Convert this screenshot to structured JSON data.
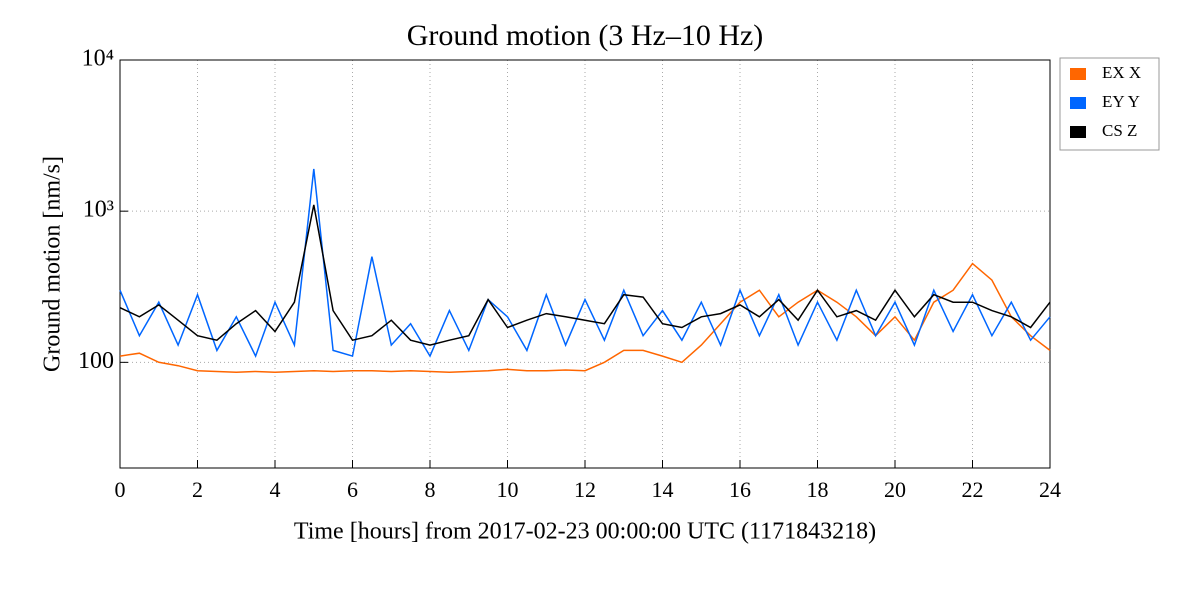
{
  "chart_data": {
    "type": "line",
    "title": "Ground motion (3 Hz–10 Hz)",
    "xlabel": "Time [hours] from 2017-02-23 00:00:00 UTC (1171843218)",
    "ylabel": "Ground motion [nm/s]",
    "log_y": true,
    "grid": true,
    "legend": "outside-right-top",
    "xlim": [
      0,
      24
    ],
    "xticks": [
      0,
      2,
      4,
      6,
      8,
      10,
      12,
      14,
      16,
      18,
      20,
      22,
      24
    ],
    "ylim": [
      20,
      10000
    ],
    "yticks": [
      100,
      {
        "value": 1000,
        "label": "10³"
      },
      {
        "value": 10000,
        "label": "10⁴"
      }
    ],
    "x": [
      0,
      0.5,
      1,
      1.5,
      2,
      2.5,
      3,
      3.5,
      4,
      4.5,
      5,
      5.5,
      6,
      6.5,
      7,
      7.5,
      8,
      8.5,
      9,
      9.5,
      10,
      10.5,
      11,
      11.5,
      12,
      12.5,
      13,
      13.5,
      14,
      14.5,
      15,
      15.5,
      16,
      16.5,
      17,
      17.5,
      18,
      18.5,
      19,
      19.5,
      20,
      20.5,
      21,
      21.5,
      22,
      22.5,
      23,
      23.5,
      24
    ],
    "series": [
      {
        "name": "EX X",
        "color": "#ff6600",
        "values": [
          110,
          115,
          100,
          95,
          88,
          87,
          86,
          87,
          86,
          87,
          88,
          87,
          88,
          88,
          87,
          88,
          87,
          86,
          87,
          88,
          90,
          88,
          88,
          89,
          88,
          100,
          120,
          120,
          110,
          100,
          130,
          180,
          250,
          300,
          200,
          250,
          300,
          250,
          200,
          150,
          200,
          140,
          250,
          300,
          450,
          350,
          200,
          150,
          120
        ]
      },
      {
        "name": "EY Y",
        "color": "#0066ff",
        "values": [
          300,
          150,
          250,
          130,
          280,
          120,
          200,
          110,
          250,
          130,
          1900,
          120,
          110,
          500,
          130,
          180,
          110,
          220,
          120,
          260,
          200,
          120,
          280,
          130,
          260,
          140,
          300,
          150,
          220,
          140,
          250,
          130,
          300,
          150,
          280,
          130,
          250,
          140,
          300,
          150,
          250,
          130,
          300,
          160,
          280,
          150,
          250,
          140,
          200
        ]
      },
      {
        "name": "CS Z",
        "color": "#000000",
        "values": [
          230,
          200,
          240,
          190,
          150,
          140,
          180,
          220,
          160,
          250,
          1100,
          220,
          140,
          150,
          190,
          140,
          130,
          140,
          150,
          260,
          170,
          190,
          210,
          200,
          190,
          180,
          280,
          270,
          180,
          170,
          200,
          210,
          240,
          200,
          260,
          190,
          300,
          200,
          220,
          190,
          300,
          200,
          280,
          250,
          250,
          220,
          200,
          170,
          250
        ]
      }
    ]
  }
}
